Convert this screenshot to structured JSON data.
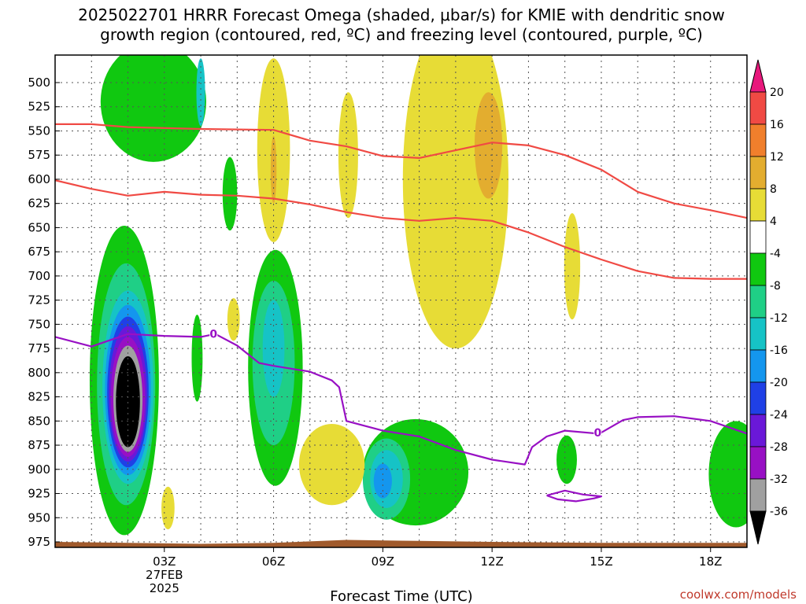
{
  "chart_data": {
    "type": "contour",
    "title_lines": [
      "2025022701 HRRR Forecast Omega (shaded, μbar/s) for KMIE with dendritic snow",
      "growth region (contoured, red, ºC) and freezing level (contoured, purple, ºC)"
    ],
    "xlabel": "Forecast Time (UTC)",
    "credit": "coolwx.com/models",
    "x_ticks": [
      {
        "hour": 3,
        "label": "03Z",
        "sub": [
          "27FEB",
          "2025"
        ]
      },
      {
        "hour": 6,
        "label": "06Z",
        "sub": []
      },
      {
        "hour": 9,
        "label": "09Z",
        "sub": []
      },
      {
        "hour": 12,
        "label": "12Z",
        "sub": []
      },
      {
        "hour": 15,
        "label": "15Z",
        "sub": []
      },
      {
        "hour": 18,
        "label": "18Z",
        "sub": []
      }
    ],
    "x_range_hours": [
      0,
      19
    ],
    "y_range_hpa": [
      480,
      980
    ],
    "y_ticks": [
      500,
      525,
      550,
      575,
      600,
      625,
      650,
      675,
      700,
      725,
      750,
      775,
      800,
      825,
      850,
      875,
      900,
      925,
      950,
      975
    ],
    "grid": true,
    "colorbar": {
      "labels": [
        "20",
        "16",
        "12",
        "8",
        "4",
        "-4",
        "-8",
        "-12",
        "-16",
        "-20",
        "-24",
        "-28",
        "-32",
        "-36"
      ],
      "colors": [
        "#e8187c",
        "#f04a44",
        "#f07f2c",
        "#e3ad2f",
        "#e7dc36",
        "#ffffff",
        "#10c810",
        "#1fcf86",
        "#16c3c6",
        "#1496ee",
        "#1f40e6",
        "#6a18d8",
        "#9810c4",
        "#a0a0a0",
        "#000000"
      ]
    },
    "shading_colors": {
      "green": "#10c810",
      "teal": "#1fcf86",
      "cyan": "#16c3c6",
      "lightblue": "#1496ee",
      "blue": "#1f40e6",
      "purple": "#6a18d8",
      "violet": "#9810c4",
      "gray": "#a0a0a0",
      "black": "#000000",
      "yellow": "#e7dc36",
      "gold": "#e3ad2f",
      "orange": "#f07f2c"
    },
    "shaded_regions": [
      {
        "color": "green",
        "x": 1.9,
        "y": 808,
        "rx": 0.95,
        "ry": 160
      },
      {
        "color": "teal",
        "x": 1.95,
        "y": 812,
        "rx": 0.8,
        "ry": 125
      },
      {
        "color": "cyan",
        "x": 2.0,
        "y": 815,
        "rx": 0.7,
        "ry": 100
      },
      {
        "color": "lightblue",
        "x": 2.0,
        "y": 818,
        "rx": 0.63,
        "ry": 88
      },
      {
        "color": "blue",
        "x": 2.0,
        "y": 820,
        "rx": 0.57,
        "ry": 78
      },
      {
        "color": "purple",
        "x": 2.0,
        "y": 822,
        "rx": 0.52,
        "ry": 70
      },
      {
        "color": "violet",
        "x": 2.0,
        "y": 825,
        "rx": 0.47,
        "ry": 62
      },
      {
        "color": "gray",
        "x": 2.0,
        "y": 827,
        "rx": 0.4,
        "ry": 55
      },
      {
        "color": "black",
        "x": 2.0,
        "y": 830,
        "rx": 0.33,
        "ry": 47
      },
      {
        "color": "green",
        "x": 2.7,
        "y": 520,
        "rx": 1.45,
        "ry": 62
      },
      {
        "color": "cyan",
        "x": 4.0,
        "y": 510,
        "rx": 0.12,
        "ry": 35
      },
      {
        "color": "green",
        "x": 3.9,
        "y": 785,
        "rx": 0.15,
        "ry": 45
      },
      {
        "color": "green",
        "x": 4.8,
        "y": 615,
        "rx": 0.2,
        "ry": 38
      },
      {
        "color": "green",
        "x": 6.05,
        "y": 795,
        "rx": 0.75,
        "ry": 122
      },
      {
        "color": "teal",
        "x": 6.0,
        "y": 790,
        "rx": 0.58,
        "ry": 85
      },
      {
        "color": "cyan",
        "x": 6.0,
        "y": 775,
        "rx": 0.3,
        "ry": 50
      },
      {
        "color": "green",
        "x": 9.9,
        "y": 903,
        "rx": 1.45,
        "ry": 55
      },
      {
        "color": "teal",
        "x": 9.1,
        "y": 910,
        "rx": 0.65,
        "ry": 42
      },
      {
        "color": "cyan",
        "x": 9.1,
        "y": 910,
        "rx": 0.45,
        "ry": 30
      },
      {
        "color": "lightblue",
        "x": 9.0,
        "y": 912,
        "rx": 0.25,
        "ry": 18
      },
      {
        "color": "green",
        "x": 14.05,
        "y": 890,
        "rx": 0.28,
        "ry": 25
      },
      {
        "color": "green",
        "x": 18.7,
        "y": 905,
        "rx": 0.75,
        "ry": 55
      },
      {
        "color": "yellow",
        "x": 11.0,
        "y": 600,
        "rx": 1.45,
        "ry": 175
      },
      {
        "color": "yellow",
        "x": 6.0,
        "y": 570,
        "rx": 0.45,
        "ry": 95
      },
      {
        "color": "gold",
        "x": 6.0,
        "y": 590,
        "rx": 0.08,
        "ry": 35
      },
      {
        "color": "yellow",
        "x": 8.05,
        "y": 575,
        "rx": 0.27,
        "ry": 65
      },
      {
        "color": "yellow",
        "x": 7.6,
        "y": 895,
        "rx": 0.9,
        "ry": 42
      },
      {
        "color": "yellow",
        "x": 4.9,
        "y": 745,
        "rx": 0.17,
        "ry": 22
      },
      {
        "color": "yellow",
        "x": 3.1,
        "y": 940,
        "rx": 0.18,
        "ry": 22
      },
      {
        "color": "yellow",
        "x": 14.2,
        "y": 690,
        "rx": 0.22,
        "ry": 55
      },
      {
        "color": "gold",
        "x": 11.9,
        "y": 565,
        "rx": 0.38,
        "ry": 55
      }
    ],
    "dgz_upper_line": {
      "color": "#f04a44",
      "points": [
        [
          0,
          543
        ],
        [
          1,
          543
        ],
        [
          2,
          546
        ],
        [
          4,
          548
        ],
        [
          6,
          549
        ],
        [
          7,
          560
        ],
        [
          8,
          566
        ],
        [
          9,
          576
        ],
        [
          10,
          578
        ],
        [
          11,
          570
        ],
        [
          12,
          562
        ],
        [
          13,
          565
        ],
        [
          14,
          575
        ],
        [
          15,
          590
        ],
        [
          16,
          613
        ],
        [
          17,
          625
        ],
        [
          18,
          632
        ],
        [
          19,
          640
        ]
      ]
    },
    "dgz_lower_line": {
      "color": "#f04a44",
      "points": [
        [
          0,
          601
        ],
        [
          1,
          610
        ],
        [
          2,
          617
        ],
        [
          3,
          613
        ],
        [
          4,
          616
        ],
        [
          5,
          617
        ],
        [
          6,
          620
        ],
        [
          7,
          626
        ],
        [
          8,
          634
        ],
        [
          9,
          640
        ],
        [
          10,
          643
        ],
        [
          11,
          640
        ],
        [
          12,
          643
        ],
        [
          13,
          655
        ],
        [
          14,
          670
        ],
        [
          15,
          683
        ],
        [
          16,
          695
        ],
        [
          17,
          702
        ],
        [
          18,
          703
        ],
        [
          19,
          703
        ]
      ]
    },
    "freezing_line": {
      "color": "#9810c4",
      "points": [
        [
          0,
          763
        ],
        [
          1,
          773
        ],
        [
          2,
          760
        ],
        [
          3,
          762
        ],
        [
          4,
          763
        ],
        [
          4.4,
          760
        ],
        [
          5,
          772
        ],
        [
          5.6,
          790
        ],
        [
          6,
          793
        ],
        [
          7,
          799
        ],
        [
          7.6,
          808
        ],
        [
          7.8,
          815
        ],
        [
          8,
          850
        ],
        [
          9,
          860
        ],
        [
          10,
          866
        ],
        [
          11,
          880
        ],
        [
          12,
          890
        ],
        [
          12.9,
          895
        ],
        [
          13.1,
          877
        ],
        [
          13.5,
          866
        ],
        [
          14,
          860
        ],
        [
          14.9,
          863
        ],
        [
          15,
          862
        ],
        [
          15.6,
          849
        ],
        [
          16,
          846
        ],
        [
          17,
          845
        ],
        [
          18,
          850
        ],
        [
          19,
          863
        ]
      ]
    },
    "freezing_small_loop": {
      "color": "#9810c4",
      "points": [
        [
          13.5,
          927
        ],
        [
          14,
          922
        ],
        [
          14.5,
          926
        ],
        [
          15,
          928
        ],
        [
          14.8,
          930
        ],
        [
          14.3,
          933
        ],
        [
          13.8,
          931
        ],
        [
          13.5,
          927
        ]
      ]
    },
    "freezing_labels": [
      {
        "text": "0",
        "x": 4.35,
        "y": 760
      },
      {
        "text": "0",
        "x": 14.9,
        "y": 862
      }
    ],
    "ground_fill_color": "#a05a2c"
  }
}
